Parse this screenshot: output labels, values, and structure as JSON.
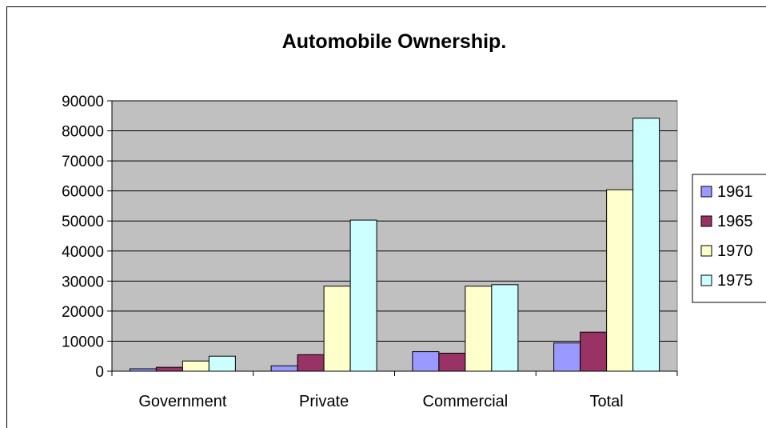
{
  "chart_data": {
    "type": "bar",
    "title": "Automobile Ownership.",
    "xlabel": "",
    "ylabel": "",
    "categories": [
      "Government",
      "Private",
      "Commercial",
      "Total"
    ],
    "series": [
      {
        "name": "1961",
        "color": "#9999ff",
        "values": [
          800,
          1800,
          6500,
          9400
        ]
      },
      {
        "name": "1965",
        "color": "#993366",
        "values": [
          1300,
          5500,
          6000,
          13000
        ]
      },
      {
        "name": "1970",
        "color": "#ffffcc",
        "values": [
          3400,
          28300,
          28300,
          60400
        ]
      },
      {
        "name": "1975",
        "color": "#ccffff",
        "values": [
          5000,
          50300,
          28800,
          84200
        ]
      }
    ],
    "ylim": [
      0,
      90000
    ],
    "yticks": [
      "0",
      "10000",
      "20000",
      "30000",
      "40000",
      "50000",
      "60000",
      "70000",
      "80000",
      "90000"
    ],
    "grid": true,
    "plot_background": "#c0c0c0",
    "legend_position": "right"
  }
}
